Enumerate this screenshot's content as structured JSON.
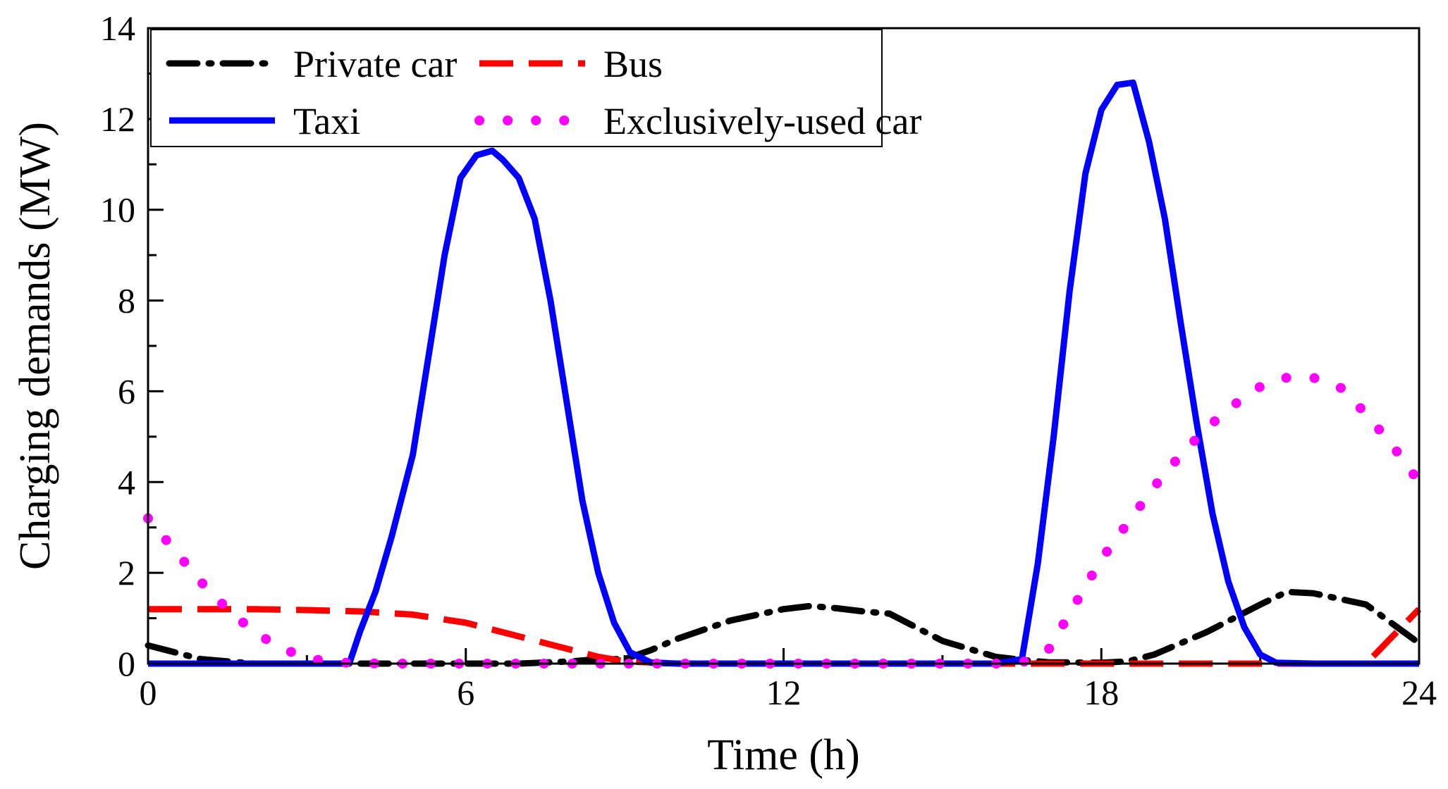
{
  "chart_data": {
    "type": "line",
    "title": "",
    "xlabel": "Time (h)",
    "ylabel": "Charging demands (MW)",
    "xlim": [
      0,
      24
    ],
    "ylim": [
      0,
      14
    ],
    "xticks": [
      0,
      6,
      12,
      18,
      24
    ],
    "yticks": [
      0,
      2,
      4,
      6,
      8,
      10,
      12,
      14
    ],
    "grid": false,
    "legend_position": "top-left",
    "series": [
      {
        "name": "Private car",
        "color": "#000000",
        "style": "dashdot",
        "x": [
          0,
          0.5,
          1,
          1.5,
          2,
          3,
          4,
          5,
          6,
          7,
          8,
          8.5,
          9,
          9.5,
          10,
          11,
          12,
          12.5,
          13,
          13.5,
          14,
          15,
          16,
          16.5,
          17,
          18,
          18.5,
          19,
          20,
          21,
          21.5,
          22,
          23,
          24
        ],
        "y": [
          0.4,
          0.25,
          0.1,
          0.05,
          0.0,
          0.0,
          0.0,
          0.0,
          0.0,
          0.0,
          0.05,
          0.1,
          0.1,
          0.3,
          0.55,
          0.95,
          1.2,
          1.27,
          1.22,
          1.15,
          1.1,
          0.5,
          0.15,
          0.08,
          0.03,
          0.02,
          0.05,
          0.2,
          0.7,
          1.3,
          1.58,
          1.55,
          1.3,
          0.45
        ]
      },
      {
        "name": "Bus",
        "color": "#ff0000",
        "style": "dashed",
        "x": [
          0,
          1,
          2,
          3,
          4,
          5,
          6,
          7,
          8,
          8.5,
          9,
          10,
          12,
          14,
          16,
          17,
          18,
          19,
          20,
          21,
          22,
          23,
          23.5,
          24
        ],
        "y": [
          1.2,
          1.2,
          1.2,
          1.18,
          1.15,
          1.08,
          0.9,
          0.6,
          0.3,
          0.15,
          0.05,
          0.0,
          0.0,
          0.0,
          0.0,
          0.0,
          0.0,
          0.0,
          0.0,
          0.0,
          0.0,
          0.0,
          0.6,
          1.2
        ]
      },
      {
        "name": "Taxi",
        "color": "#0000ff",
        "style": "solid",
        "x": [
          0,
          1,
          2,
          3,
          3.8,
          4,
          4.3,
          4.6,
          5,
          5.3,
          5.6,
          5.9,
          6.2,
          6.5,
          6.7,
          7,
          7.3,
          7.6,
          7.9,
          8.2,
          8.5,
          8.8,
          9.1,
          9.5,
          10,
          12,
          14,
          16,
          16.5,
          16.8,
          17.1,
          17.4,
          17.7,
          18,
          18.3,
          18.6,
          18.9,
          19.2,
          19.5,
          19.8,
          20.1,
          20.4,
          20.7,
          21,
          21.3,
          22,
          24
        ],
        "y": [
          0,
          0,
          0,
          0,
          0,
          0.7,
          1.6,
          2.8,
          4.6,
          6.8,
          9.0,
          10.7,
          11.2,
          11.3,
          11.1,
          10.7,
          9.8,
          8.0,
          5.8,
          3.6,
          2.0,
          0.9,
          0.25,
          0.02,
          0,
          0,
          0,
          0,
          0.1,
          2.2,
          5.0,
          8.2,
          10.8,
          12.2,
          12.75,
          12.8,
          11.5,
          9.8,
          7.5,
          5.3,
          3.3,
          1.8,
          0.8,
          0.2,
          0.02,
          0,
          0
        ]
      },
      {
        "name": "Exclusively-used car",
        "color": "#ff00ff",
        "style": "dotted",
        "x": [
          0,
          0.5,
          1,
          1.5,
          2,
          2.5,
          3,
          3.5,
          4,
          4.5,
          5,
          6,
          8,
          10,
          12,
          14,
          16,
          16.5,
          17,
          17.5,
          18,
          18.5,
          19,
          19.5,
          20,
          20.5,
          21,
          21.5,
          22,
          22.5,
          23,
          23.5,
          24
        ],
        "y": [
          3.2,
          2.5,
          1.8,
          1.2,
          0.7,
          0.35,
          0.12,
          0.03,
          0.01,
          0,
          0,
          0,
          0,
          0,
          0,
          0,
          0,
          0.02,
          0.3,
          1.3,
          2.3,
          3.1,
          3.9,
          4.6,
          5.2,
          5.7,
          6.1,
          6.3,
          6.3,
          6.1,
          5.5,
          4.8,
          4.0
        ]
      }
    ]
  }
}
